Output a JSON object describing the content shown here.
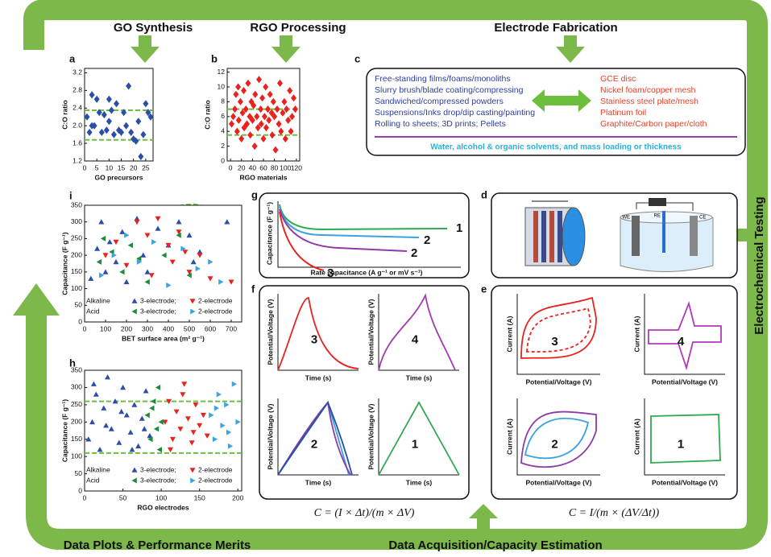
{
  "stages": {
    "go_synthesis": "GO Synthesis",
    "rgo_processing": "RGO Processing",
    "electrode_fabrication": "Electrode Fabrication",
    "electrochemical_testing": "Electrochemical Testing",
    "data_plots": "Data Plots & Performance Merits",
    "data_acquisition": "Data Acquisition/Capacity Estimation"
  },
  "panels": {
    "a": {
      "letter": "a",
      "x_label": "GO precursors",
      "y_label": "C:O ratio",
      "xlim": [
        0,
        28
      ],
      "ylim": [
        1.2,
        3.3
      ],
      "xticks": [
        0,
        5,
        10,
        15,
        20,
        25
      ],
      "yticks": [
        1.2,
        1.6,
        {
          "value": 2,
          "label": "2.0"
        },
        2.4,
        2.8,
        3.2
      ],
      "band": [
        1.68,
        2.35
      ],
      "series": [
        {
          "marker": "diamond",
          "color": "#2a4fa8",
          "x": [
            1,
            2,
            3,
            3,
            4,
            5,
            6,
            7,
            8,
            9,
            10,
            10,
            11,
            12,
            13,
            14,
            15,
            16,
            17,
            18,
            19,
            20,
            21,
            22,
            23,
            24,
            25,
            26,
            27
          ],
          "y": [
            2.2,
            1.85,
            2.7,
            2.0,
            2.0,
            2.6,
            2.3,
            1.85,
            2.25,
            1.9,
            2.6,
            2.1,
            2.35,
            1.8,
            2.5,
            1.9,
            1.85,
            2.3,
            2.0,
            2.9,
            1.85,
            1.7,
            1.65,
            2.1,
            1.3,
            1.8,
            2.5,
            2.3,
            2.2
          ]
        }
      ]
    },
    "b": {
      "letter": "b",
      "x_label": "RGO materials",
      "y_label": "C:O ratio",
      "xlim": [
        -6,
        126
      ],
      "ylim": [
        0,
        12.5
      ],
      "xticks": [
        0,
        20,
        40,
        60,
        80,
        100,
        120
      ],
      "yticks": [
        0,
        2,
        4,
        6,
        8,
        10,
        12
      ],
      "band": [
        3.5,
        7
      ],
      "series": [
        {
          "marker": "diamond",
          "color": "#e8231e",
          "x": [
            2,
            5,
            8,
            10,
            12,
            14,
            15,
            18,
            20,
            22,
            24,
            25,
            28,
            30,
            32,
            35,
            36,
            38,
            40,
            42,
            44,
            45,
            48,
            50,
            52,
            55,
            56,
            58,
            60,
            62,
            64,
            65,
            68,
            70,
            72,
            75,
            76,
            78,
            80,
            82,
            85,
            88,
            90,
            92,
            95,
            98,
            100,
            102,
            105,
            108,
            110,
            112,
            115,
            118
          ],
          "y": [
            5,
            6,
            7,
            9,
            4,
            10,
            5.5,
            8,
            3,
            6.5,
            9.5,
            4.5,
            7,
            5,
            10.5,
            6,
            3.5,
            8,
            5.5,
            7.5,
            2,
            9,
            6,
            4.5,
            11,
            7,
            5,
            8.5,
            3,
            6,
            10,
            4.5,
            7,
            5.5,
            9,
            6.5,
            3.5,
            8,
            6,
            1.5,
            7,
            5,
            10.5,
            4,
            6.5,
            8,
            3,
            7,
            5.5,
            9.5,
            4,
            6,
            8.5,
            7
          ]
        }
      ]
    },
    "i": {
      "letter": "i",
      "x_label": "BET surface area (m² g⁻¹)",
      "y_label": "Capacitance (F g⁻¹)",
      "xlim": [
        0,
        750
      ],
      "ylim": [
        0,
        350
      ],
      "xticks": [
        0,
        100,
        200,
        300,
        400,
        500,
        600,
        700
      ],
      "yticks": [
        0,
        50,
        100,
        150,
        200,
        250,
        300,
        350
      ],
      "legend": [
        {
          "label": "Alkaline",
          "entries": [
            "3-electrode;",
            "2-electrode"
          ]
        },
        {
          "label": "Acid",
          "entries": [
            "3-electrode;",
            "2-electrode"
          ]
        }
      ],
      "series": [
        {
          "marker": "up",
          "color": "#2a4fa8",
          "x": [
            60,
            80,
            100,
            120,
            150,
            180,
            200,
            250,
            280,
            300,
            350,
            400,
            450,
            500,
            520,
            550,
            30,
            680
          ],
          "y": [
            220,
            300,
            150,
            240,
            180,
            270,
            120,
            310,
            200,
            150,
            280,
            230,
            300,
            260,
            180,
            210,
            130,
            300
          ]
        },
        {
          "marker": "down",
          "color": "#e8231e",
          "x": [
            100,
            150,
            200,
            250,
            300,
            320,
            350,
            400,
            420,
            450,
            480,
            500,
            550,
            600,
            700
          ],
          "y": [
            200,
            240,
            170,
            300,
            260,
            140,
            310,
            230,
            180,
            270,
            210,
            150,
            200,
            130,
            120
          ]
        },
        {
          "marker": "left",
          "color": "#1f8a3c",
          "x": [
            70,
            90,
            130,
            180,
            220,
            260,
            300,
            380,
            450,
            500
          ],
          "y": [
            180,
            250,
            210,
            150,
            230,
            190,
            120,
            200,
            260,
            140
          ]
        },
        {
          "marker": "right",
          "color": "#3ba3e0",
          "x": [
            80,
            140,
            200,
            260,
            330,
            400,
            470,
            540,
            600,
            650
          ],
          "y": [
            140,
            200,
            260,
            180,
            240,
            110,
            220,
            160,
            180,
            120
          ]
        }
      ]
    },
    "h": {
      "letter": "h",
      "x_label": "RGO electrodes",
      "y_label": "Capacitance (F g⁻¹)",
      "xlim": [
        0,
        205
      ],
      "ylim": [
        0,
        350
      ],
      "xticks": [
        0,
        50,
        100,
        150,
        200
      ],
      "yticks": [
        0,
        50,
        100,
        150,
        200,
        250,
        300,
        350
      ],
      "band": [
        110,
        260
      ],
      "legend": [
        {
          "label": "Alkaline",
          "entries": [
            "3-electrode;",
            "2-electrode"
          ]
        },
        {
          "label": "Acid",
          "entries": [
            "3-electrode;",
            "2-electrode"
          ]
        }
      ],
      "series": [
        {
          "marker": "up",
          "color": "#2a4fa8",
          "x": [
            5,
            10,
            15,
            20,
            25,
            30,
            35,
            40,
            45,
            50,
            55,
            60,
            65,
            70,
            75,
            80,
            85,
            12,
            28,
            48,
            62,
            78
          ],
          "y": [
            150,
            200,
            280,
            120,
            240,
            330,
            180,
            260,
            140,
            300,
            220,
            170,
            250,
            130,
            210,
            290,
            160,
            310,
            190,
            230,
            120,
            180
          ]
        },
        {
          "marker": "down",
          "color": "#e8231e",
          "x": [
            105,
            110,
            115,
            120,
            125,
            130,
            135,
            140,
            145,
            150,
            155,
            160,
            112,
            128,
            142
          ],
          "y": [
            200,
            260,
            150,
            230,
            180,
            310,
            210,
            140,
            250,
            190,
            220,
            160,
            120,
            280,
            170
          ]
        },
        {
          "marker": "left",
          "color": "#1f8a3c",
          "x": [
            82,
            86,
            90,
            94,
            98,
            100,
            88,
            96
          ],
          "y": [
            220,
            150,
            260,
            180,
            120,
            200,
            240,
            300
          ]
        },
        {
          "marker": "right",
          "color": "#3ba3e0",
          "x": [
            165,
            170,
            175,
            180,
            185,
            190,
            195,
            200,
            172,
            188
          ],
          "y": [
            220,
            150,
            280,
            190,
            250,
            130,
            310,
            200,
            240,
            170
          ]
        }
      ]
    },
    "c": {
      "letter": "c",
      "left": [
        "Free-standing films/foams/monoliths",
        "Slurry brush/blade coating/compressing",
        "Sandwiched/compressed powders",
        "Suspensions/Inks drop/dip casting/painting",
        "Rolling to sheets; 3D prints; Pellets"
      ],
      "right": [
        "GCE disc",
        "Nickel foam/copper mesh",
        "Stainless steel plate/mesh",
        "Platinum foil",
        "Graphite/Carbon paper/cloth"
      ],
      "footer": "Water, alcohol & organic solvents, and mass loading or thickness"
    },
    "g": {
      "letter": "g",
      "y_label": "Capacitance (F g⁻¹)",
      "x_label": "Rate capacitance (A g⁻¹ or mV s⁻¹)",
      "curve_labels": [
        "1",
        "2",
        "2",
        "3"
      ]
    },
    "d": {
      "letter": "d",
      "labels": [
        "WE",
        "RE",
        "CE"
      ]
    },
    "f": {
      "letter": "f",
      "formula": "C = (I × Δt)/(m × ΔV)",
      "subplots": [
        {
          "number": "3",
          "x_label": "Time (s)",
          "y_label": "Potential/Voltage (V)"
        },
        {
          "number": "4",
          "x_label": "Time (s)",
          "y_label": "Potential/Voltage (V)"
        },
        {
          "number": "2",
          "x_label": "Time (s)",
          "y_label": "Potential/Voltage (V)"
        },
        {
          "number": "1",
          "x_label": "Time (s)",
          "y_label": "Potential/Voltage (V)"
        }
      ]
    },
    "e": {
      "letter": "e",
      "formula": "C = I/(m × (ΔV/Δt))",
      "subplots": [
        {
          "number": "3",
          "x_label": "Potential/Voltage (V)",
          "y_label": "Current (A)"
        },
        {
          "number": "4",
          "x_label": "Potential/Voltage (V)",
          "y_label": "Current (A)"
        },
        {
          "number": "2",
          "x_label": "Potential/Voltage (V)",
          "y_label": "Current (A)"
        },
        {
          "number": "1",
          "x_label": "Potential/Voltage (V)",
          "y_label": "Current (A)"
        }
      ]
    }
  }
}
